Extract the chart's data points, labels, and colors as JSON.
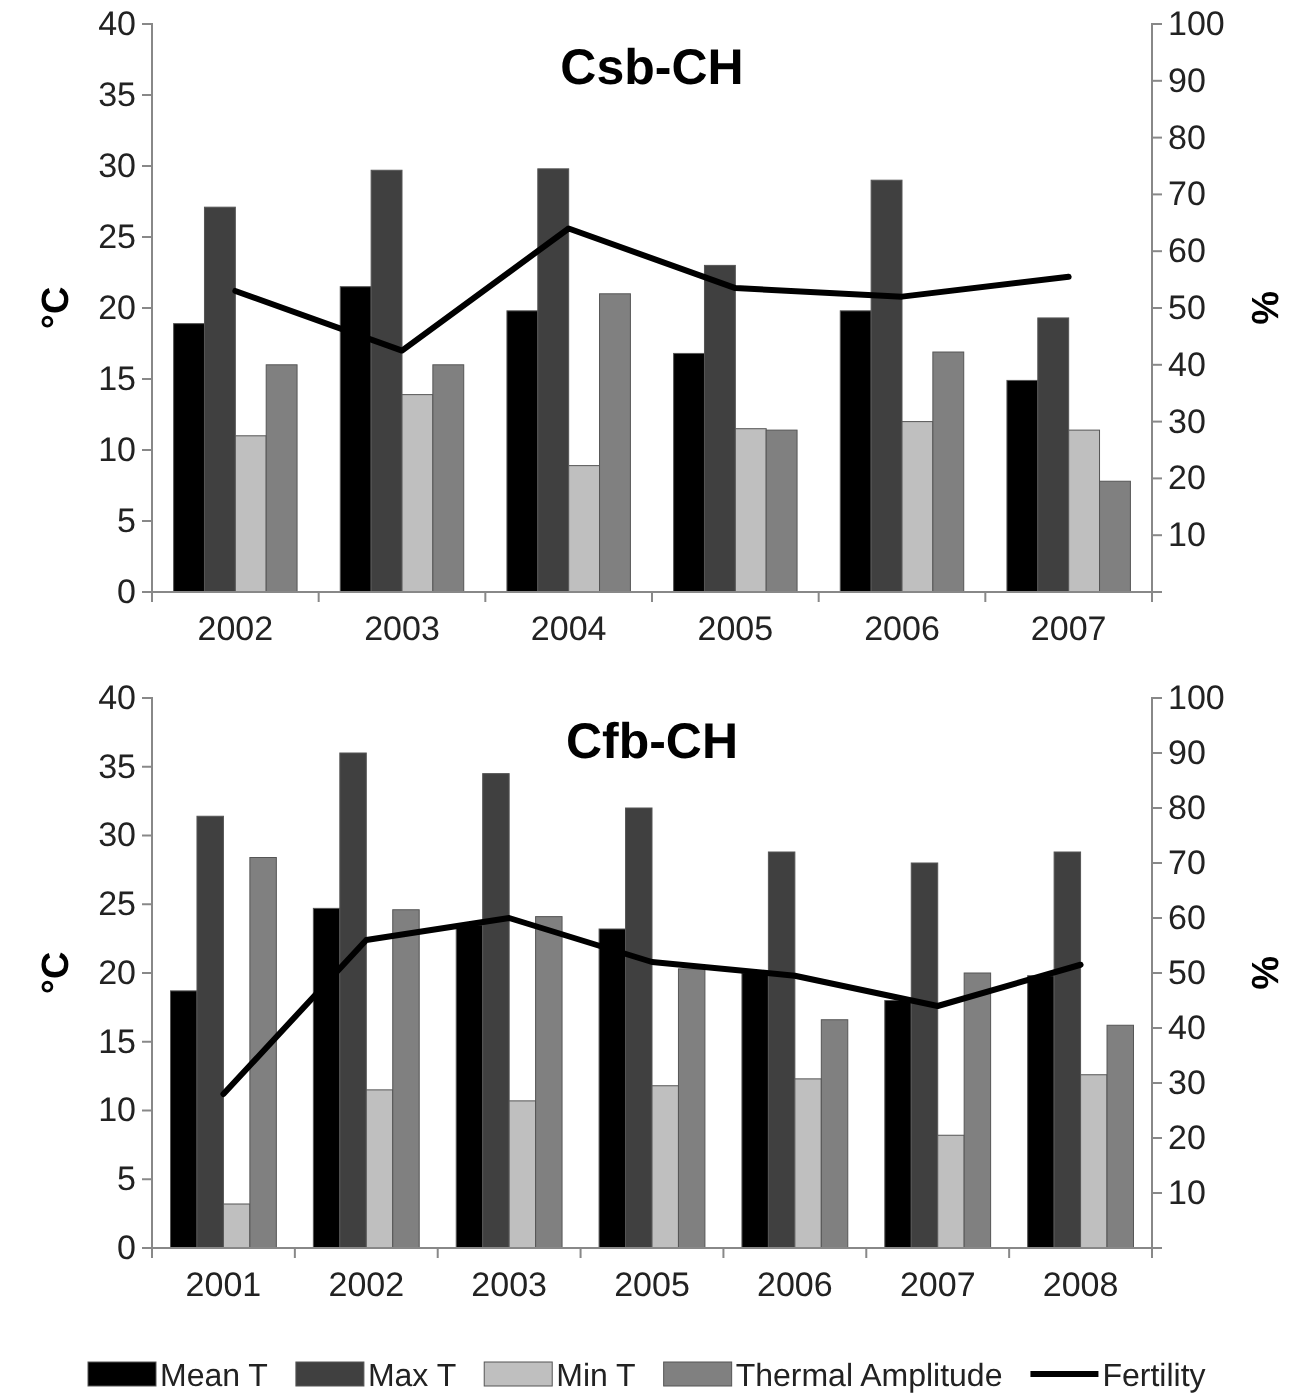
{
  "chart_data": [
    {
      "type": "bar",
      "title": "Csb-CH",
      "ylabel": "°C",
      "y2label": "%",
      "categories": [
        "2002",
        "2003",
        "2004",
        "2005",
        "2006",
        "2007"
      ],
      "series": [
        {
          "color": "#000000",
          "values": [
            18.9,
            21.5,
            19.8,
            16.8,
            19.8,
            14.9
          ]
        },
        {
          "color": "#404040",
          "values": [
            27.1,
            29.7,
            29.8,
            23.0,
            29.0,
            19.3
          ]
        },
        {
          "color": "#bfbfbf",
          "values": [
            11.0,
            13.9,
            8.9,
            11.5,
            12.0,
            11.4
          ]
        },
        {
          "color": "#808080",
          "values": [
            16.0,
            16.0,
            21.0,
            11.4,
            16.9,
            7.8
          ]
        },
        {
          "type": "line",
          "axis": "y2",
          "color": "#000000",
          "values": [
            53,
            42.5,
            64,
            53.5,
            52,
            55.5
          ]
        }
      ],
      "ylim": [
        0,
        40
      ],
      "yticks": [
        0,
        5,
        10,
        15,
        20,
        25,
        30,
        35,
        40
      ],
      "y2lim": [
        0,
        100
      ],
      "y2ticks": [
        {
          "value": 0,
          "label": null
        },
        10,
        20,
        30,
        40,
        50,
        60,
        70,
        80,
        90,
        100
      ],
      "grid": false,
      "legend": false
    },
    {
      "type": "bar",
      "title": "Cfb-CH",
      "ylabel": "°C",
      "y2label": "%",
      "categories": [
        "2001",
        "2002",
        "2003",
        "2005",
        "2006",
        "2007",
        "2008"
      ],
      "series": [
        {
          "name": "Mean T",
          "color": "#000000",
          "values": [
            18.7,
            24.7,
            23.5,
            23.2,
            20.0,
            18.0,
            19.8
          ]
        },
        {
          "name": "Max T",
          "color": "#404040",
          "values": [
            31.4,
            36.0,
            34.5,
            32.0,
            28.8,
            28.0,
            28.8
          ]
        },
        {
          "name": "Min T",
          "color": "#bfbfbf",
          "values": [
            3.2,
            11.5,
            10.7,
            11.8,
            12.3,
            8.2,
            12.6
          ]
        },
        {
          "name": "Thermal Amplitude",
          "color": "#808080",
          "values": [
            28.4,
            24.6,
            24.1,
            20.3,
            16.6,
            20.0,
            16.2
          ]
        },
        {
          "name": "Fertility",
          "type": "line",
          "axis": "y2",
          "color": "#000000",
          "values": [
            28,
            56,
            60,
            52,
            49.5,
            44,
            51.5
          ]
        }
      ],
      "ylim": [
        0,
        40
      ],
      "yticks": [
        0,
        5,
        10,
        15,
        20,
        25,
        30,
        35,
        40
      ],
      "y2lim": [
        0,
        100
      ],
      "y2ticks": [
        {
          "value": 0,
          "label": null
        },
        10,
        20,
        30,
        40,
        50,
        60,
        70,
        80,
        90,
        100
      ],
      "grid": false,
      "legend": "bottom"
    }
  ]
}
